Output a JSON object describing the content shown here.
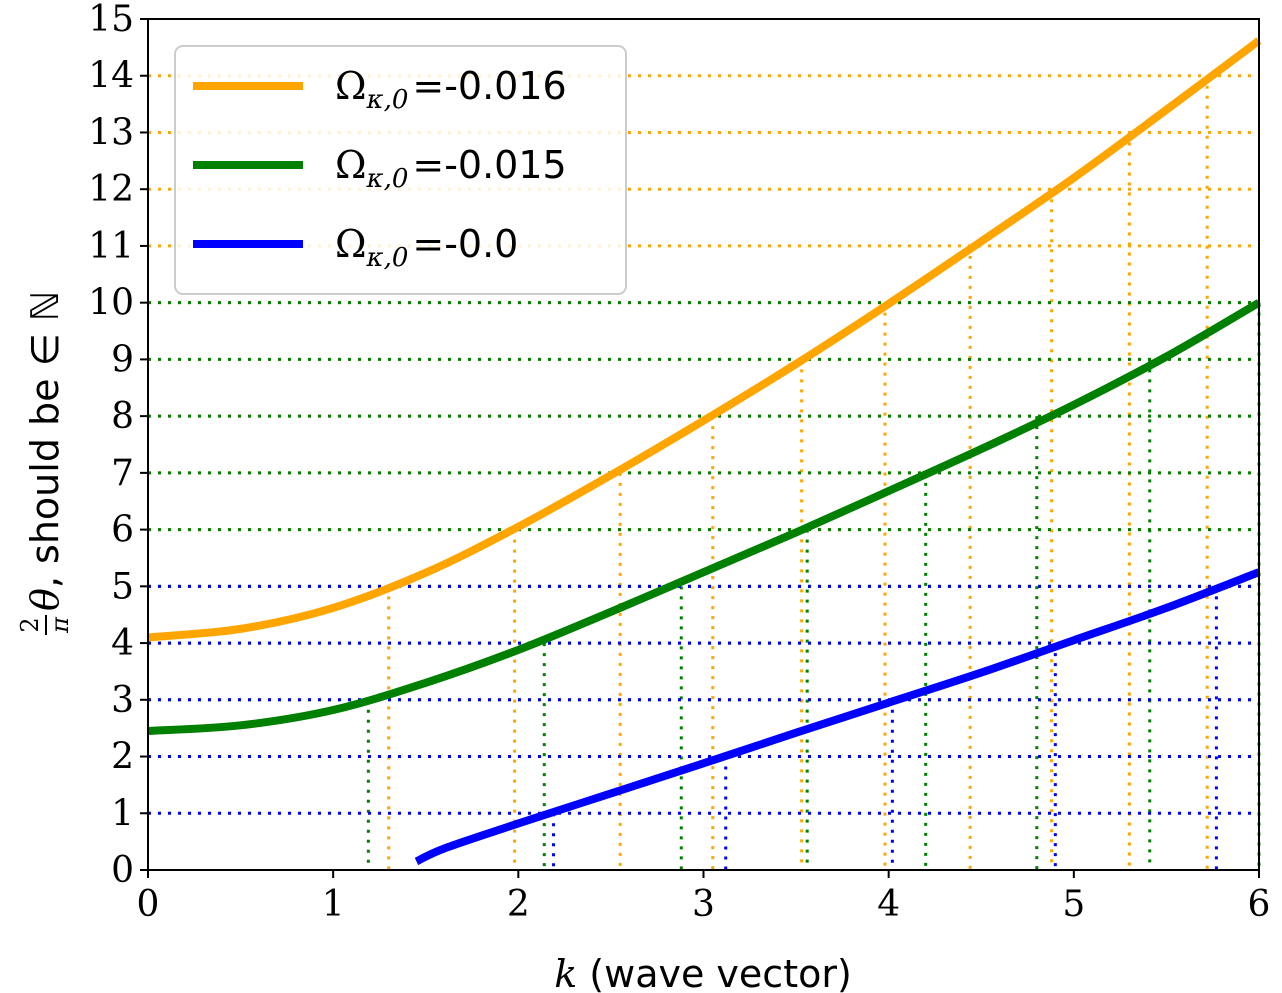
{
  "chart_data": {
    "type": "line",
    "xlabel": {
      "symbol": "k",
      "text": " (wave vector)"
    },
    "ylabel": {
      "fraction_num": "2",
      "fraction_den": "π",
      "symbol": "θ",
      "text": ", should be ∈ ℕ"
    },
    "xlim": [
      0,
      6
    ],
    "ylim": [
      0,
      15
    ],
    "xticks": [
      "0",
      "1",
      "2",
      "3",
      "4",
      "5",
      "6"
    ],
    "yticks": [
      "0",
      "1",
      "2",
      "3",
      "4",
      "5",
      "6",
      "7",
      "8",
      "9",
      "10",
      "11",
      "12",
      "13",
      "14",
      "15"
    ],
    "legend_placement": "top-left",
    "legend_symbol": "Ω",
    "legend_subscript": "κ,0",
    "series": [
      {
        "name": "-0.016",
        "color": "#FFA500",
        "x": [
          0,
          0.5,
          1.0,
          1.5,
          2.0,
          2.5,
          3.0,
          3.5,
          4.0,
          4.5,
          5.0,
          5.5,
          6.0
        ],
        "y": [
          4.1,
          4.25,
          4.62,
          5.24,
          6.05,
          6.96,
          7.92,
          8.92,
          9.98,
          11.08,
          12.2,
          13.4,
          14.62
        ],
        "integer_levels": [
          5,
          6,
          7,
          8,
          9,
          10,
          11,
          12,
          13,
          14
        ],
        "crossings": [
          1.3,
          1.98,
          2.55,
          3.05,
          3.53,
          3.98,
          4.44,
          4.88,
          5.3,
          5.72
        ]
      },
      {
        "name": "-0.015",
        "color": "#008000",
        "x": [
          0,
          0.5,
          1.0,
          1.5,
          2.0,
          2.5,
          3.0,
          3.5,
          4.0,
          4.5,
          5.0,
          5.5,
          6.0
        ],
        "y": [
          2.45,
          2.55,
          2.82,
          3.3,
          3.88,
          4.55,
          5.25,
          5.95,
          6.68,
          7.42,
          8.2,
          9.05,
          10.0
        ],
        "integer_levels": [
          3,
          4,
          5,
          6,
          7,
          8,
          9,
          10
        ],
        "crossings": [
          1.19,
          2.14,
          2.88,
          3.56,
          4.2,
          4.8,
          5.41,
          6.0
        ]
      },
      {
        "name": "-0.0",
        "color": "#0000FF",
        "x": [
          1.45,
          1.6,
          2.0,
          2.5,
          3.0,
          3.5,
          4.0,
          4.5,
          5.0,
          5.5,
          6.0
        ],
        "y": [
          0.15,
          0.38,
          0.82,
          1.35,
          1.88,
          2.42,
          2.95,
          3.48,
          4.05,
          4.62,
          5.25
        ],
        "integer_levels": [
          1,
          2,
          3,
          4,
          5
        ],
        "crossings": [
          2.19,
          3.12,
          4.02,
          4.9,
          5.77
        ]
      }
    ]
  }
}
